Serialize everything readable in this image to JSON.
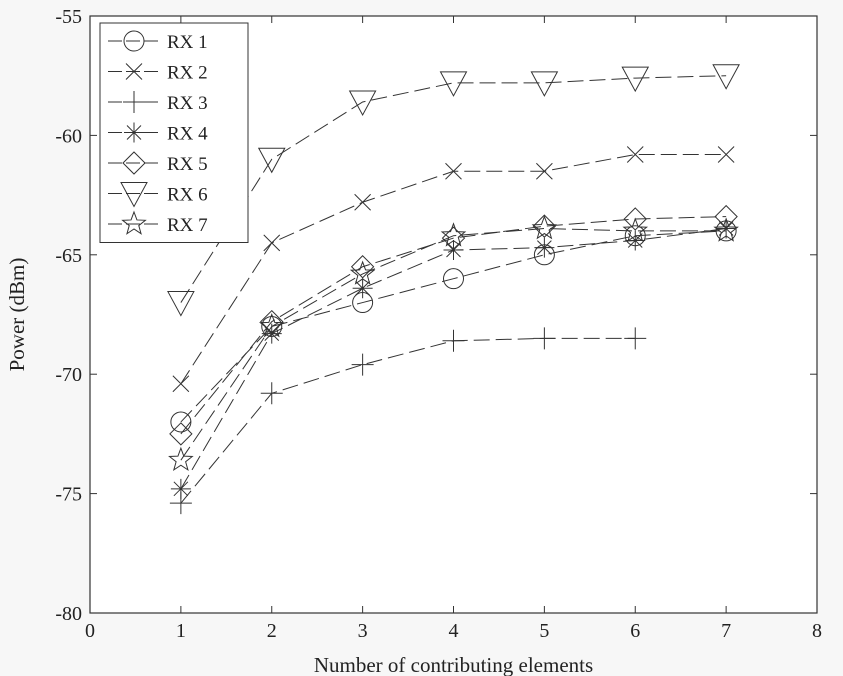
{
  "chart_data": {
    "type": "line",
    "title": "",
    "xlabel": "Number of contributing elements",
    "ylabel": "Power (dBm)",
    "xlim": [
      0,
      8
    ],
    "ylim": [
      -80,
      -55
    ],
    "xticks": [
      0,
      1,
      2,
      3,
      4,
      5,
      6,
      7,
      8
    ],
    "yticks": [
      -80,
      -75,
      -70,
      -65,
      -60,
      -55
    ],
    "grid": false,
    "legend_position": "top-left",
    "line_color": "#333333",
    "series": [
      {
        "name": "RX 1",
        "marker": "circle",
        "x": [
          1,
          2,
          3,
          4,
          5,
          6,
          7
        ],
        "y": [
          -72.0,
          -68.0,
          -67.0,
          -66.0,
          -65.0,
          -64.2,
          -64.0
        ]
      },
      {
        "name": "RX 2",
        "marker": "x",
        "x": [
          1,
          2,
          3,
          4,
          5,
          6,
          7
        ],
        "y": [
          -70.4,
          -64.5,
          -62.8,
          -61.5,
          -61.5,
          -60.8,
          -60.8
        ]
      },
      {
        "name": "RX 3",
        "marker": "plus",
        "x": [
          1,
          2,
          3,
          4,
          5,
          6
        ],
        "y": [
          -75.4,
          -70.8,
          -69.6,
          -68.6,
          -68.5,
          -68.5
        ]
      },
      {
        "name": "RX 4",
        "marker": "asterisk",
        "x": [
          1,
          2,
          3,
          4,
          5,
          6,
          7
        ],
        "y": [
          -74.8,
          -68.3,
          -66.4,
          -64.8,
          -64.7,
          -64.4,
          -63.9
        ]
      },
      {
        "name": "RX 5",
        "marker": "diamond",
        "x": [
          1,
          2,
          3,
          4,
          5,
          6,
          7
        ],
        "y": [
          -72.5,
          -67.8,
          -65.5,
          -64.3,
          -63.8,
          -63.5,
          -63.4
        ]
      },
      {
        "name": "RX 6",
        "marker": "triangle-down",
        "x": [
          1,
          2,
          3,
          4,
          5,
          6,
          7
        ],
        "y": [
          -67.0,
          -61.0,
          -58.6,
          -57.8,
          -57.8,
          -57.6,
          -57.5
        ]
      },
      {
        "name": "RX 7",
        "marker": "star",
        "x": [
          1,
          2,
          3,
          4,
          5,
          6,
          7
        ],
        "y": [
          -73.6,
          -68.0,
          -65.8,
          -64.2,
          -63.9,
          -64.0,
          -64.0
        ]
      }
    ]
  }
}
